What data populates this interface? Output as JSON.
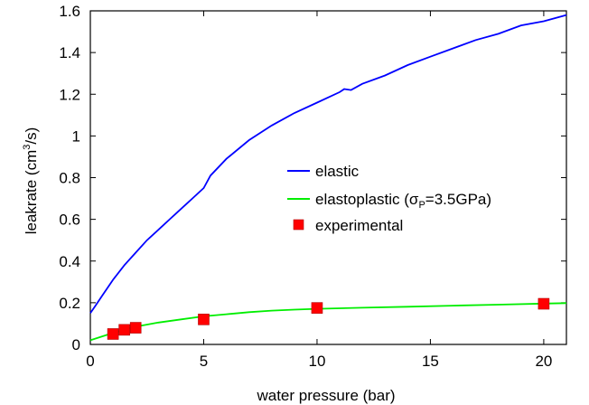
{
  "chart_data": {
    "type": "line",
    "xlabel": "water pressure  (bar)",
    "ylabel": "leakrate  (cm",
    "ylabel_sup": "3",
    "ylabel_tail": "/s)",
    "xlim": [
      0,
      21
    ],
    "ylim": [
      0,
      1.6
    ],
    "x_ticks": [
      0,
      5,
      10,
      15,
      20
    ],
    "y_ticks": [
      0,
      0.2,
      0.4,
      0.6,
      0.8,
      1,
      1.2,
      1.4,
      1.6
    ],
    "x_tick_labels": [
      "0",
      "5",
      "10",
      "15",
      "20"
    ],
    "y_tick_labels": [
      "0",
      "0.2",
      "0.4",
      "0.6",
      "0.8",
      "1",
      "1.2",
      "1.4",
      "1.6"
    ],
    "grid": false,
    "legend_position": "center-right",
    "series": [
      {
        "name": "elastic",
        "kind": "line",
        "color": "#0000ff",
        "x": [
          0,
          0.25,
          0.5,
          1,
          1.5,
          2,
          2.5,
          3,
          3.5,
          4,
          4.5,
          5,
          5.3,
          6,
          7,
          8,
          9,
          10,
          10.5,
          11,
          11.2,
          11.5,
          12,
          13,
          14,
          15,
          16,
          17,
          18,
          19,
          20,
          21
        ],
        "y": [
          0.15,
          0.19,
          0.23,
          0.31,
          0.38,
          0.44,
          0.5,
          0.55,
          0.6,
          0.65,
          0.7,
          0.75,
          0.81,
          0.89,
          0.98,
          1.05,
          1.11,
          1.16,
          1.185,
          1.21,
          1.225,
          1.22,
          1.25,
          1.29,
          1.34,
          1.38,
          1.42,
          1.46,
          1.49,
          1.53,
          1.55,
          1.58
        ]
      },
      {
        "name": "elastoplastic (σ",
        "name_sub": "P",
        "name_tail": "=3.5GPa)",
        "kind": "line",
        "color": "#00ee00",
        "x": [
          0,
          1,
          2,
          3,
          4,
          5,
          6,
          7,
          8,
          9,
          10,
          12,
          14,
          16,
          18,
          20,
          21
        ],
        "y": [
          0.02,
          0.055,
          0.085,
          0.105,
          0.12,
          0.135,
          0.145,
          0.155,
          0.162,
          0.167,
          0.171,
          0.176,
          0.181,
          0.186,
          0.191,
          0.196,
          0.198
        ]
      },
      {
        "name": "experimental",
        "kind": "scatter",
        "color": "#ff0000",
        "x": [
          1,
          1.5,
          2,
          5,
          10,
          20
        ],
        "y": [
          0.05,
          0.07,
          0.08,
          0.12,
          0.175,
          0.195
        ]
      }
    ]
  }
}
